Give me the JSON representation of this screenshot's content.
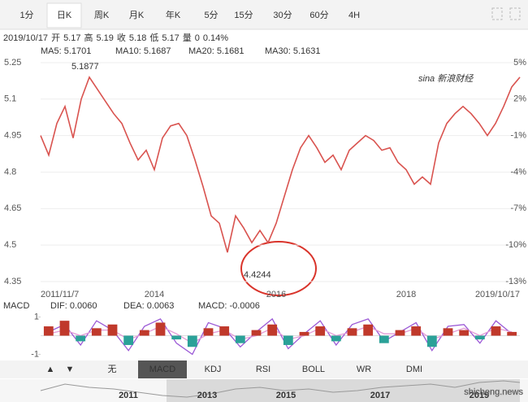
{
  "tabs": [
    "1分",
    "日K",
    "周K",
    "月K",
    "年K",
    "5分",
    "15分",
    "30分",
    "60分",
    "4H"
  ],
  "info": [
    {
      "text": "2019/10/17",
      "color": "#333333"
    },
    {
      "text": "开",
      "color": "#333333"
    },
    {
      "text": "5.17",
      "color": "#2a9d5c"
    },
    {
      "text": "高",
      "color": "#333333"
    },
    {
      "text": "5.19",
      "color": "#d9342b"
    },
    {
      "text": "收",
      "color": "#333333"
    },
    {
      "text": "5.18",
      "color": "#d9342b"
    },
    {
      "text": "低",
      "color": "#333333"
    },
    {
      "text": "5.17",
      "color": "#2a9d5c"
    },
    {
      "text": "量",
      "color": "#333333"
    },
    {
      "text": "0",
      "color": "#333333"
    },
    {
      "text": "0.14%",
      "color": "#d9342b"
    }
  ],
  "ma_legend": [
    {
      "text": "MA5: 5.1701",
      "color": "#e377c2"
    },
    {
      "text": "MA10: 5.1687",
      "color": "#3fb8b0"
    },
    {
      "text": "MA20: 5.1681",
      "color": "#e8716a"
    },
    {
      "text": "MA30: 5.1631",
      "color": "#a8a832"
    }
  ],
  "logo": "sina 新浪财经",
  "indicator_tabs": [
    "▲",
    "▼",
    "无",
    "MACD",
    "KDJ",
    "RSI",
    "BOLL",
    "WR",
    "DMI"
  ],
  "navigator_labels": [
    "2011",
    "2013",
    "2015",
    "2017",
    "2019"
  ],
  "watermark": "shicheng.news",
  "chart_data": [
    {
      "type": "line",
      "annotations": [
        "5.1877",
        "4.4244"
      ],
      "categories": [
        "2011/11/7",
        null,
        null,
        null,
        null,
        null,
        null,
        null,
        null,
        null,
        null,
        null,
        null,
        null,
        "2014",
        null,
        null,
        null,
        null,
        null,
        null,
        null,
        null,
        null,
        null,
        null,
        null,
        null,
        null,
        "2016",
        null,
        null,
        null,
        null,
        null,
        null,
        null,
        null,
        null,
        null,
        null,
        null,
        null,
        null,
        null,
        "2018",
        null,
        null,
        null,
        null,
        null,
        null,
        null,
        null,
        null,
        null,
        null,
        null,
        null,
        "2019/10/17"
      ],
      "series": [
        {
          "name": "日K",
          "color": "#d9534f",
          "values": [
            4.95,
            4.87,
            5.0,
            5.07,
            4.94,
            5.1,
            5.19,
            5.14,
            5.09,
            5.04,
            5.0,
            4.92,
            4.85,
            4.89,
            4.81,
            4.94,
            4.99,
            5.0,
            4.95,
            4.85,
            4.74,
            4.62,
            4.59,
            4.47,
            4.62,
            4.57,
            4.51,
            4.56,
            4.51,
            4.59,
            4.7,
            4.81,
            4.9,
            4.95,
            4.9,
            4.84,
            4.87,
            4.81,
            4.89,
            4.92,
            4.95,
            4.93,
            4.89,
            4.9,
            4.84,
            4.81,
            4.75,
            4.78,
            4.75,
            4.92,
            5.0,
            5.04,
            5.07,
            5.04,
            5.0,
            4.95,
            5.0,
            5.07,
            5.15,
            5.19
          ]
        }
      ],
      "ylim": [
        4.33,
        5.3
      ],
      "yticks": [
        5.25,
        5.1,
        4.95,
        4.8,
        4.65,
        4.5,
        4.35
      ],
      "y2lim": [
        -13.4,
        6
      ],
      "y2ticks": [
        {
          "value": 5,
          "label": "5%"
        },
        {
          "value": 2,
          "label": "2%"
        },
        {
          "value": -1,
          "label": "-1%"
        },
        {
          "value": -4,
          "label": "-4%"
        },
        {
          "value": -7,
          "label": "-7%"
        },
        {
          "value": -10,
          "label": "-10%"
        },
        {
          "value": -13,
          "label": "-13%"
        }
      ],
      "grid": true
    },
    {
      "type": "macd",
      "title": "MACD",
      "series": [
        {
          "name": "DIF: 0.0060",
          "color": "#9b59d6",
          "values": [
            0.2,
            0.6,
            -0.5,
            0.8,
            0.3,
            -0.8,
            0.5,
            0.9,
            -0.4,
            -1.0,
            0.7,
            0.4,
            -0.6,
            0.2,
            0.9,
            -0.7,
            0.1,
            0.8,
            -0.5,
            0.6,
            0.9,
            -0.3,
            0.2,
            0.7,
            -0.8,
            0.5,
            0.6,
            -0.4,
            0.8,
            0.1
          ]
        },
        {
          "name": "DEA: 0.0063",
          "color": "#e39bd6",
          "values": [
            0.1,
            0.3,
            0,
            0.3,
            0.3,
            -0.2,
            0.1,
            0.5,
            0.1,
            -0.4,
            0.1,
            0.3,
            -0.2,
            0,
            0.4,
            -0.2,
            0,
            0.4,
            0,
            0.2,
            0.5,
            0.1,
            0.1,
            0.4,
            -0.2,
            0.1,
            0.4,
            0,
            0.4,
            0.2
          ]
        },
        {
          "name": "MACD: -0.0006",
          "color": "#c0392b",
          "down_color": "#2aa198",
          "values": [
            0.5,
            0.8,
            -0.3,
            0.4,
            0.6,
            -0.5,
            0.3,
            0.7,
            -0.2,
            -0.6,
            0.4,
            0.5,
            -0.4,
            0.3,
            0.6,
            -0.5,
            0.2,
            0.5,
            -0.3,
            0.4,
            0.6,
            -0.4,
            0.3,
            0.5,
            -0.6,
            0.4,
            0.3,
            -0.2,
            0.5,
            0.2
          ]
        }
      ],
      "ylim": [
        -1.2,
        1.2
      ],
      "yticks": [
        1,
        -1
      ]
    }
  ]
}
